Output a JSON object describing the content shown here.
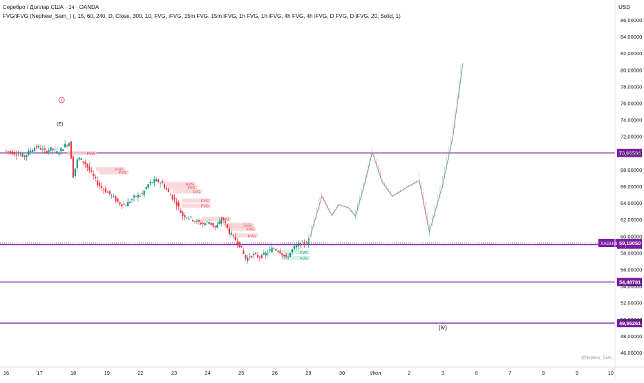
{
  "header": {
    "title": "Серебро / Доллар США · 1ч · OANDA",
    "indicator": "FVG/iFVG (Nephew_Sam_) (, 15, 60, 240, D, Close, 300, 10, FVG, iFVG, 15m FVG, 15m iFVG, 1h FVG, 1h iFVG, 4h FVG, 4h iFVG, D FVG, D iFVG, 20, Solid, 1)"
  },
  "currency": "USD",
  "watermark": "@Nephew_Sam_",
  "colors": {
    "up": "#089981",
    "down": "#f23645",
    "level": "#7b1fa2",
    "fvg_bear": "#f7cdd2",
    "fvg_bull": "#c9ede4",
    "projection": "#9e9e9e"
  },
  "chart_data": {
    "type": "line",
    "title": "Серебро / Доллар США · 1ч · OANDA",
    "xlabel": "",
    "ylabel": "",
    "ylim": [
      45,
      87
    ],
    "yticks": [
      "86,00000",
      "84,00000",
      "82,00000",
      "80,00000",
      "78,00000",
      "76,00000",
      "74,00000",
      "72,00000",
      "70,00000",
      "68,00000",
      "66,00000",
      "64,00000",
      "62,00000",
      "60,00000",
      "58,00000",
      "56,00000",
      "54,00000",
      "52,00000",
      "50,00000",
      "48,00000",
      "46,00000"
    ],
    "ytick_values": [
      86,
      84,
      82,
      80,
      78,
      76,
      74,
      72,
      70,
      68,
      66,
      64,
      62,
      60,
      58,
      56,
      54,
      52,
      50,
      48,
      46
    ],
    "xticks": [
      "16",
      "17",
      "18",
      "19",
      "22",
      "23",
      "24",
      "25",
      "26",
      "29",
      "30",
      "Июл",
      "2",
      "3",
      "6",
      "7",
      "8",
      "9",
      "10"
    ],
    "xtick_idx": [
      0,
      1,
      2,
      3,
      4,
      5,
      6,
      7,
      8,
      9,
      10,
      11,
      12,
      13,
      14,
      15,
      16,
      17,
      18
    ],
    "levels": [
      {
        "label": "70,00594",
        "value": 70.00594
      },
      {
        "label": "58,98265",
        "value": 58.98265
      },
      {
        "label": "54,48781",
        "value": 54.48781
      },
      {
        "label": "49,55251",
        "value": 49.55251
      }
    ],
    "price_label": {
      "symbol": "XAGUSD",
      "value": "59,19050",
      "price": 59.1905
    },
    "series": [
      {
        "x": [
          0,
          0.3,
          0.6,
          0.8,
          1.0,
          1.2,
          1.4,
          1.6,
          1.8,
          1.95,
          2.05,
          2.2,
          2.4,
          2.6,
          2.8,
          3.0,
          3.2,
          3.4,
          3.6,
          3.9,
          4.1,
          4.3,
          4.5,
          4.7,
          4.9,
          5.1,
          5.3,
          5.5,
          5.7,
          5.9,
          6.1,
          6.3,
          6.5,
          6.7,
          6.9,
          7.0,
          7.2,
          7.4,
          7.6,
          7.8,
          8.0,
          8.2,
          8.4,
          8.6,
          8.8,
          9.0
        ],
        "y": [
          70.3,
          70.0,
          69.6,
          70.4,
          70.8,
          70.2,
          70.5,
          70.0,
          70.9,
          71.3,
          67.2,
          69.5,
          68.8,
          67.5,
          66.2,
          65.5,
          64.9,
          64.0,
          63.7,
          64.8,
          65.0,
          66.3,
          66.7,
          66.4,
          65.2,
          64.2,
          62.5,
          62.3,
          61.8,
          61.5,
          61.7,
          61.0,
          62.2,
          60.5,
          59.5,
          59.0,
          57.2,
          57.8,
          57.5,
          57.9,
          58.6,
          58.2,
          57.3,
          58.5,
          59.1,
          59.2
        ]
      },
      {
        "x": [
          9.0,
          9.4,
          9.7,
          9.9,
          10.2,
          10.4,
          10.7,
          10.9,
          11.2,
          11.5,
          11.9,
          12.3,
          12.6,
          13.0,
          13.3,
          13.6
        ],
        "y": [
          59.2,
          64.8,
          62.5,
          63.8,
          63.4,
          62.4,
          66.7,
          70.1,
          66.5,
          64.8,
          65.8,
          66.7,
          60.5,
          66.2,
          72.0,
          80.8
        ]
      }
    ],
    "labels": [
      {
        "text": "(E)",
        "x": 1.6,
        "y": 73.3
      },
      {
        "text": "X",
        "x": 1.65,
        "y": 76.2
      },
      {
        "text": "(iv)",
        "x": 13.0,
        "y": 48.8
      }
    ],
    "fvg_labels": [
      {
        "text": "FVG",
        "kind": "bear",
        "x": 2.4,
        "y": 69.9
      },
      {
        "text": "FVG",
        "kind": "bear",
        "x": 3.25,
        "y": 68.0
      },
      {
        "text": "FVG",
        "kind": "bear",
        "x": 3.35,
        "y": 67.6
      },
      {
        "text": "FVG",
        "kind": "bear",
        "x": 5.35,
        "y": 66.2
      },
      {
        "text": "FVG",
        "kind": "bear",
        "x": 5.4,
        "y": 65.8
      },
      {
        "text": "FVG",
        "kind": "bear",
        "x": 5.55,
        "y": 65.3
      },
      {
        "text": "FVG",
        "kind": "bear",
        "x": 5.8,
        "y": 64.2
      },
      {
        "text": "FVG",
        "kind": "bear",
        "x": 5.8,
        "y": 63.6
      },
      {
        "text": "FVG",
        "kind": "bear",
        "x": 6.4,
        "y": 62.0
      },
      {
        "text": "FVG",
        "kind": "bear",
        "x": 7.05,
        "y": 61.3
      },
      {
        "text": "FVG",
        "kind": "bear",
        "x": 7.1,
        "y": 61.1
      },
      {
        "text": "FVG",
        "kind": "bear",
        "x": 7.15,
        "y": 60.8
      },
      {
        "text": "FVG",
        "kind": "bear",
        "x": 7.2,
        "y": 60.0
      },
      {
        "text": "FVG",
        "kind": "bull",
        "x": 8.75,
        "y": 58.0
      },
      {
        "text": "FVG",
        "kind": "bull",
        "x": 8.75,
        "y": 57.3
      }
    ]
  }
}
